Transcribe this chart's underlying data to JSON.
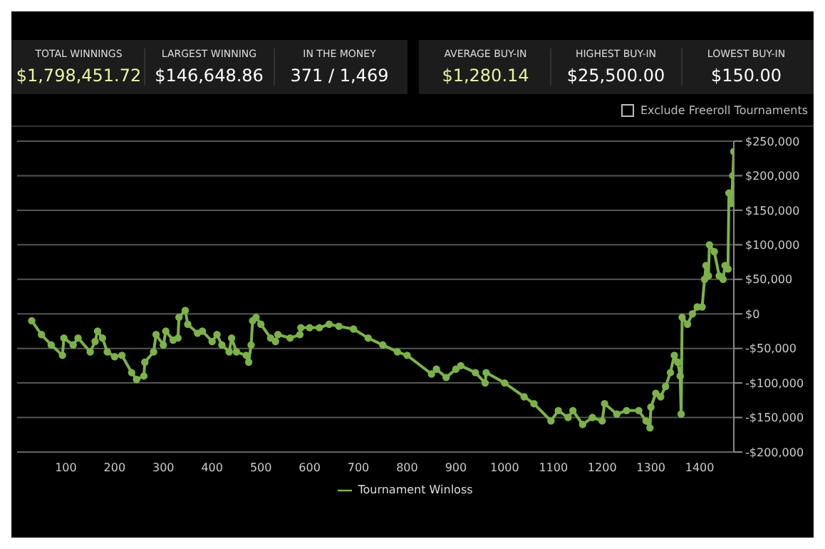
{
  "chart_data": [
    {
      "type": "other",
      "annotations": [
        "TOTAL WINNINGS",
        "$1,798,451.72",
        "LARGEST WINNING",
        "$146,648.86",
        "IN THE MONEY",
        "371 / 1,469",
        "AVERAGE BUY-IN",
        "$1,280.14",
        "HIGHEST BUY-IN",
        "$25,500.00",
        "LOWEST BUY-IN",
        "$150.00"
      ]
    },
    {
      "type": "line",
      "annotations": [
        "Exclude Freeroll Tournaments"
      ],
      "legend": "bottom",
      "grid": "y",
      "marker": "circle",
      "line_style": "solid",
      "xlim": [
        0,
        1470
      ],
      "xticks": [
        100,
        200,
        300,
        400,
        500,
        600,
        700,
        800,
        900,
        1000,
        1100,
        1200,
        1300,
        1400
      ],
      "ylim": [
        -200000,
        250000
      ],
      "yticks": [
        {
          "value": -200000,
          "label": "-$200,000"
        },
        {
          "value": -150000,
          "label": "-$150,000"
        },
        {
          "value": -100000,
          "label": "-$100,000"
        },
        {
          "value": -50000,
          "label": "-$50,000"
        },
        {
          "value": 0,
          "label": "$0"
        },
        {
          "value": 50000,
          "label": "$50,000"
        },
        {
          "value": 100000,
          "label": "$100,000"
        },
        {
          "value": 150000,
          "label": "$150,000"
        },
        {
          "value": 200000,
          "label": "$200,000"
        },
        {
          "value": 250000,
          "label": "$250,000"
        }
      ],
      "series": [
        {
          "name": "Tournament Winloss",
          "color": "#7cb24a",
          "x": [
            30,
            50,
            70,
            93,
            96,
            115,
            125,
            150,
            160,
            165,
            175,
            185,
            200,
            215,
            235,
            245,
            260,
            262,
            280,
            285,
            300,
            305,
            320,
            330,
            332,
            345,
            350,
            370,
            380,
            400,
            410,
            420,
            435,
            440,
            450,
            470,
            475,
            480,
            483,
            490,
            500,
            520,
            530,
            535,
            560,
            580,
            582,
            600,
            620,
            640,
            660,
            690,
            720,
            750,
            780,
            800,
            850,
            860,
            880,
            900,
            910,
            940,
            960,
            962,
            1000,
            1040,
            1060,
            1095,
            1110,
            1130,
            1140,
            1160,
            1180,
            1200,
            1205,
            1230,
            1250,
            1275,
            1290,
            1298,
            1300,
            1310,
            1320,
            1330,
            1340,
            1348,
            1355,
            1360,
            1362,
            1364,
            1375,
            1385,
            1395,
            1405,
            1410,
            1413,
            1418,
            1420,
            1430,
            1440,
            1448,
            1452,
            1458,
            1460,
            1465,
            1468,
            1470
          ],
          "values": [
            -10000,
            -30000,
            -45000,
            -60000,
            -35000,
            -45000,
            -35000,
            -55000,
            -40000,
            -25000,
            -35000,
            -55000,
            -62000,
            -60000,
            -85000,
            -95000,
            -90000,
            -70000,
            -55000,
            -30000,
            -45000,
            -25000,
            -38000,
            -35000,
            -5000,
            5000,
            -15000,
            -28000,
            -25000,
            -40000,
            -30000,
            -45000,
            -55000,
            -35000,
            -55000,
            -60000,
            -70000,
            -45000,
            -10000,
            -5000,
            -15000,
            -35000,
            -40000,
            -30000,
            -35000,
            -30000,
            -20000,
            -20000,
            -20000,
            -15000,
            -18000,
            -22000,
            -35000,
            -45000,
            -55000,
            -60000,
            -87000,
            -80000,
            -92000,
            -80000,
            -75000,
            -85000,
            -100000,
            -85000,
            -100000,
            -120000,
            -130000,
            -155000,
            -140000,
            -150000,
            -140000,
            -160000,
            -150000,
            -155000,
            -130000,
            -145000,
            -140000,
            -140000,
            -155000,
            -165000,
            -135000,
            -115000,
            -120000,
            -105000,
            -85000,
            -60000,
            -70000,
            -90000,
            -145000,
            -5000,
            -15000,
            0,
            10000,
            10000,
            50000,
            70000,
            55000,
            100000,
            90000,
            55000,
            50000,
            70000,
            65000,
            175000,
            160000,
            200000,
            235000
          ]
        }
      ]
    }
  ]
}
